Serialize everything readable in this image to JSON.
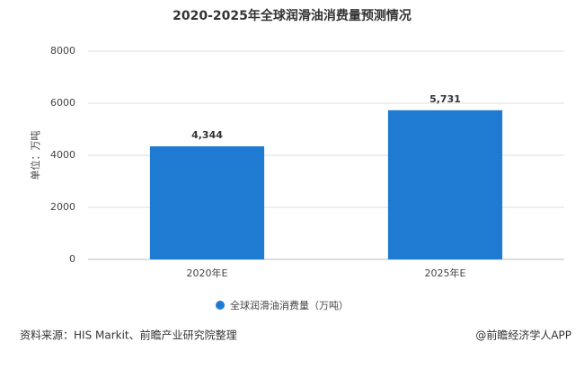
{
  "chart_data": {
    "type": "bar",
    "title": "2020-2025年全球润滑油消费量预测情况",
    "y_label": "单位：万吨",
    "categories": [
      "2020年E",
      "2025年E"
    ],
    "series": [
      {
        "name": "全球润滑油消费量（万吨）",
        "color": "#1f7bd2",
        "values": [
          4344,
          5731
        ],
        "value_labels": [
          "4,344",
          "5,731"
        ]
      }
    ],
    "ylim": [
      0,
      8000
    ],
    "yticks": [
      0,
      2000,
      4000,
      6000,
      8000
    ],
    "grid": true,
    "legend": "bottom",
    "source": "资料来源：HIS Markit、前瞻产业研究院整理",
    "credit": "@前瞻经济学人APP"
  }
}
